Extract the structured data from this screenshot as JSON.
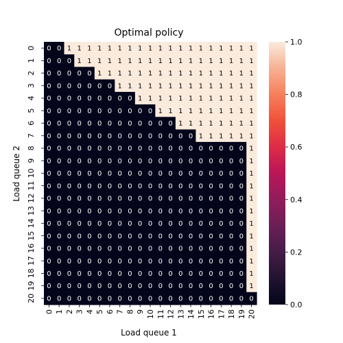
{
  "chart_data": {
    "type": "heatmap",
    "title": "Optimal policy",
    "xlabel": "Load queue 1",
    "ylabel": "Load queue 2",
    "x_ticks": [
      "0",
      "1",
      "2",
      "3",
      "4",
      "5",
      "6",
      "7",
      "8",
      "9",
      "10",
      "11",
      "12",
      "13",
      "14",
      "15",
      "16",
      "17",
      "18",
      "19",
      "20"
    ],
    "y_ticks": [
      "0",
      "1",
      "2",
      "3",
      "4",
      "5",
      "6",
      "7",
      "8",
      "9",
      "10",
      "11",
      "12",
      "13",
      "14",
      "15",
      "16",
      "17",
      "18",
      "19",
      "20"
    ],
    "colorbar_ticks": [
      "0.0",
      "0.2",
      "0.4",
      "0.6",
      "0.8",
      "1.0"
    ],
    "colorbar_range": [
      0,
      1
    ],
    "colormap": "rocket",
    "colors": {
      "low": "#03051a",
      "high": "#faebdd"
    },
    "annotated": true,
    "matrix": [
      [
        0,
        0,
        1,
        1,
        1,
        1,
        1,
        1,
        1,
        1,
        1,
        1,
        1,
        1,
        1,
        1,
        1,
        1,
        1,
        1,
        1
      ],
      [
        0,
        0,
        0,
        1,
        1,
        1,
        1,
        1,
        1,
        1,
        1,
        1,
        1,
        1,
        1,
        1,
        1,
        1,
        1,
        1,
        1
      ],
      [
        0,
        0,
        0,
        0,
        0,
        1,
        1,
        1,
        1,
        1,
        1,
        1,
        1,
        1,
        1,
        1,
        1,
        1,
        1,
        1,
        1
      ],
      [
        0,
        0,
        0,
        0,
        0,
        0,
        0,
        1,
        1,
        1,
        1,
        1,
        1,
        1,
        1,
        1,
        1,
        1,
        1,
        1,
        1
      ],
      [
        0,
        0,
        0,
        0,
        0,
        0,
        0,
        0,
        0,
        1,
        1,
        1,
        1,
        1,
        1,
        1,
        1,
        1,
        1,
        1,
        1
      ],
      [
        0,
        0,
        0,
        0,
        0,
        0,
        0,
        0,
        0,
        0,
        0,
        1,
        1,
        1,
        1,
        1,
        1,
        1,
        1,
        1,
        1
      ],
      [
        0,
        0,
        0,
        0,
        0,
        0,
        0,
        0,
        0,
        0,
        0,
        0,
        0,
        1,
        1,
        1,
        1,
        1,
        1,
        1,
        1
      ],
      [
        0,
        0,
        0,
        0,
        0,
        0,
        0,
        0,
        0,
        0,
        0,
        0,
        0,
        0,
        0,
        1,
        1,
        1,
        1,
        1,
        1
      ],
      [
        0,
        0,
        0,
        0,
        0,
        0,
        0,
        0,
        0,
        0,
        0,
        0,
        0,
        0,
        0,
        0,
        0,
        0,
        0,
        0,
        1
      ],
      [
        0,
        0,
        0,
        0,
        0,
        0,
        0,
        0,
        0,
        0,
        0,
        0,
        0,
        0,
        0,
        0,
        0,
        0,
        0,
        0,
        1
      ],
      [
        0,
        0,
        0,
        0,
        0,
        0,
        0,
        0,
        0,
        0,
        0,
        0,
        0,
        0,
        0,
        0,
        0,
        0,
        0,
        0,
        1
      ],
      [
        0,
        0,
        0,
        0,
        0,
        0,
        0,
        0,
        0,
        0,
        0,
        0,
        0,
        0,
        0,
        0,
        0,
        0,
        0,
        0,
        1
      ],
      [
        0,
        0,
        0,
        0,
        0,
        0,
        0,
        0,
        0,
        0,
        0,
        0,
        0,
        0,
        0,
        0,
        0,
        0,
        0,
        0,
        1
      ],
      [
        0,
        0,
        0,
        0,
        0,
        0,
        0,
        0,
        0,
        0,
        0,
        0,
        0,
        0,
        0,
        0,
        0,
        0,
        0,
        0,
        1
      ],
      [
        0,
        0,
        0,
        0,
        0,
        0,
        0,
        0,
        0,
        0,
        0,
        0,
        0,
        0,
        0,
        0,
        0,
        0,
        0,
        0,
        1
      ],
      [
        0,
        0,
        0,
        0,
        0,
        0,
        0,
        0,
        0,
        0,
        0,
        0,
        0,
        0,
        0,
        0,
        0,
        0,
        0,
        0,
        1
      ],
      [
        0,
        0,
        0,
        0,
        0,
        0,
        0,
        0,
        0,
        0,
        0,
        0,
        0,
        0,
        0,
        0,
        0,
        0,
        0,
        0,
        1
      ],
      [
        0,
        0,
        0,
        0,
        0,
        0,
        0,
        0,
        0,
        0,
        0,
        0,
        0,
        0,
        0,
        0,
        0,
        0,
        0,
        0,
        1
      ],
      [
        0,
        0,
        0,
        0,
        0,
        0,
        0,
        0,
        0,
        0,
        0,
        0,
        0,
        0,
        0,
        0,
        0,
        0,
        0,
        0,
        1
      ],
      [
        0,
        0,
        0,
        0,
        0,
        0,
        0,
        0,
        0,
        0,
        0,
        0,
        0,
        0,
        0,
        0,
        0,
        0,
        0,
        0,
        1
      ],
      [
        0,
        0,
        0,
        0,
        0,
        0,
        0,
        0,
        0,
        0,
        0,
        0,
        0,
        0,
        0,
        0,
        0,
        0,
        0,
        0,
        0
      ]
    ]
  }
}
